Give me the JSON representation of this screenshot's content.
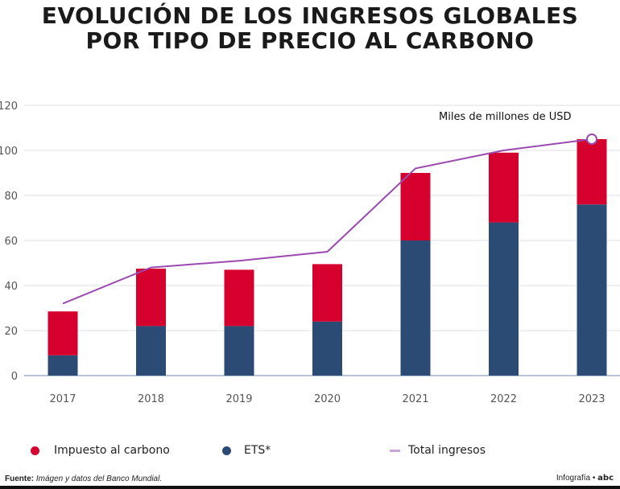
{
  "title_lines": [
    "EVOLUCIÓN DE LOS INGRESOS GLOBALES",
    "POR TIPO DE PRECIO AL CARBONO"
  ],
  "chart_data": {
    "type": "bar",
    "stacked": true,
    "title": "EVOLUCIÓN DE LOS INGRESOS GLOBALES POR TIPO DE PRECIO AL CARBONO",
    "unit_label": "Miles de millones de USD",
    "categories": [
      "2017",
      "2018",
      "2019",
      "2020",
      "2021",
      "2022",
      "2023"
    ],
    "series": [
      {
        "name": "ETS*",
        "color": "#2b4a74",
        "values": [
          9,
          22,
          22,
          24,
          60,
          68,
          76
        ]
      },
      {
        "name": "Impuesto al carbono",
        "color": "#d6002f",
        "values": [
          19.5,
          25.5,
          25,
          25.5,
          30,
          31,
          29
        ]
      },
      {
        "name": "Total ingresos",
        "type": "line",
        "color": "#9b4ab0",
        "values": [
          32,
          48,
          51,
          55,
          92,
          100,
          105
        ]
      }
    ],
    "ylim": [
      0,
      120
    ],
    "yticks": [
      0,
      20,
      40,
      60,
      80,
      100,
      120
    ],
    "grid": true,
    "legend": "bottom"
  },
  "legend": [
    {
      "label": "Impuesto al carbono",
      "color": "#d6002f"
    },
    {
      "label": "ETS*",
      "color": "#2b4a74"
    },
    {
      "label": "Total ingresos",
      "color": "#c9a6d6"
    }
  ],
  "footer": {
    "source_label": "Fuente:",
    "source_text": "Imágen y datos del Banco Mundial.",
    "credit": "Infografía •",
    "logo": "abc"
  }
}
